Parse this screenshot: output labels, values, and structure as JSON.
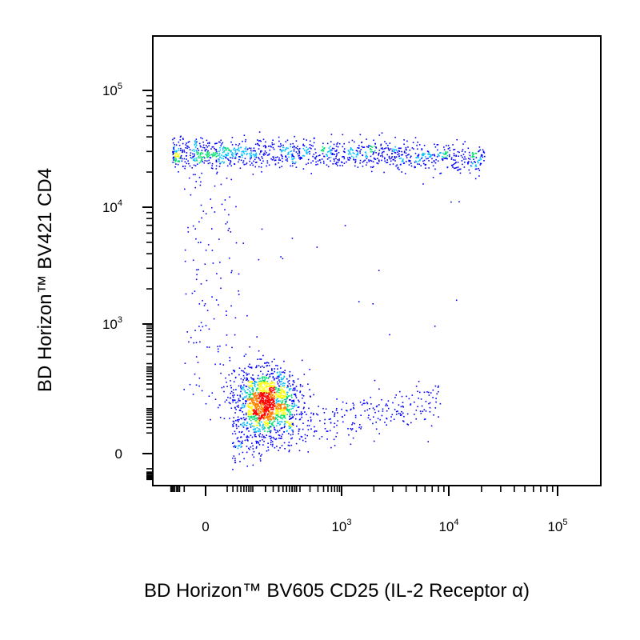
{
  "chart_data": {
    "type": "scatter",
    "subtype": "flow-cytometry-density-dot-plot",
    "title": "",
    "xlabel": "BD Horizon™ BV605 CD25 (IL-2 Receptor α)",
    "ylabel": "BD Horizon™ BV421 CD4",
    "x_scale": "biexponential",
    "y_scale": "biexponential",
    "xlim": [
      -150,
      100000
    ],
    "ylim": [
      -200,
      300000
    ],
    "x_ticks": [
      {
        "value": 0,
        "label": "0",
        "exp": ""
      },
      {
        "value": 1000,
        "label": "10",
        "exp": "3"
      },
      {
        "value": 10000,
        "label": "10",
        "exp": "4"
      },
      {
        "value": 100000,
        "label": "10",
        "exp": "5"
      }
    ],
    "y_ticks": [
      {
        "value": 0,
        "label": "0",
        "exp": ""
      },
      {
        "value": 1000,
        "label": "10",
        "exp": "3"
      },
      {
        "value": 10000,
        "label": "10",
        "exp": "4"
      },
      {
        "value": 100000,
        "label": "10",
        "exp": "5"
      }
    ],
    "grid": false,
    "legend": "none",
    "density_colors": [
      "#0000ff",
      "#00bfff",
      "#00e070",
      "#ffff00",
      "#ff8000",
      "#ff0000"
    ],
    "populations": [
      {
        "x_center": 20,
        "y_center": 10,
        "count": 1400,
        "color": "#0000ff"
      },
      {
        "x_center": 300,
        "y_center": 30000,
        "count": 1200,
        "color": "#0000ff"
      },
      {
        "x_center": 400,
        "y_center": 30,
        "count": 400,
        "color": "#0000ff"
      }
    ]
  }
}
